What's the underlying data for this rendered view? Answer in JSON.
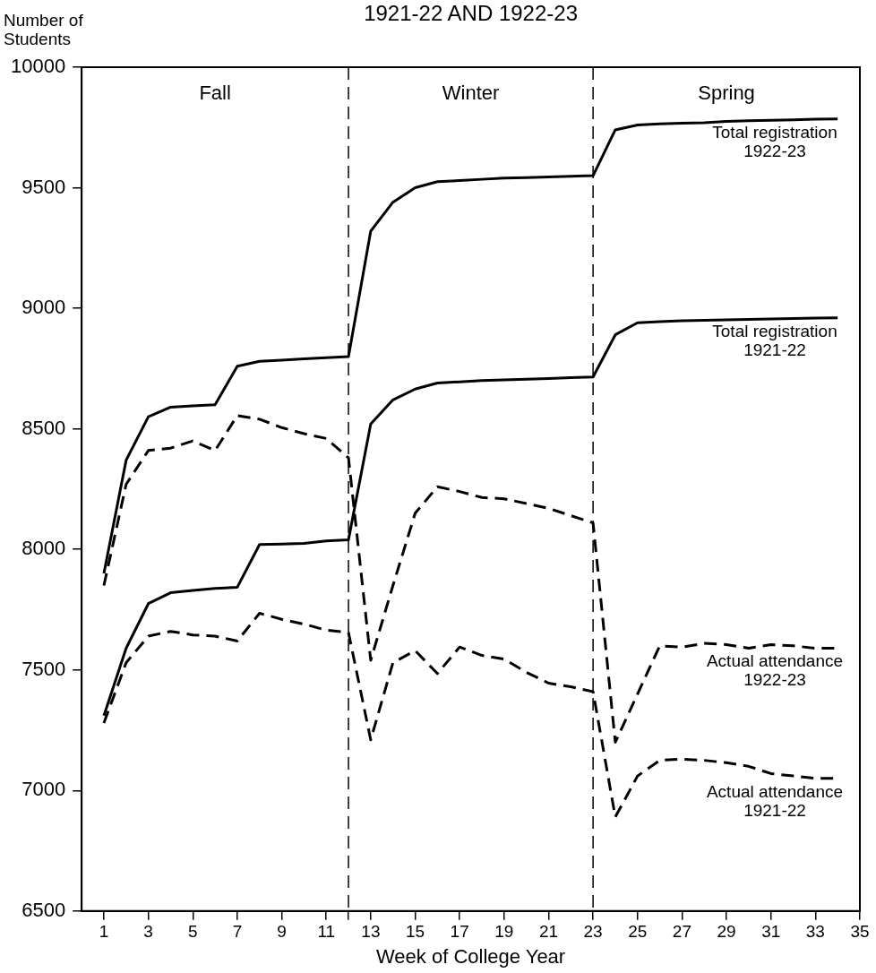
{
  "chart_data": {
    "type": "line",
    "title": "1921-22 AND 1922-23",
    "xlabel": "Week of College Year",
    "ylabel": "Number of\nStudents",
    "x": [
      1,
      2,
      3,
      4,
      5,
      6,
      7,
      8,
      9,
      10,
      11,
      12,
      13,
      14,
      15,
      16,
      17,
      18,
      19,
      20,
      21,
      22,
      23,
      24,
      25,
      26,
      27,
      28,
      29,
      30,
      31,
      32,
      33,
      34
    ],
    "series": [
      {
        "name": "Total registration\n1922-23",
        "color": "#000000",
        "line_style": "solid",
        "values": [
          7900,
          8370,
          8550,
          8590,
          8595,
          8600,
          8760,
          8780,
          8785,
          8790,
          8795,
          8800,
          9320,
          9440,
          9500,
          9525,
          9530,
          9535,
          9540,
          9542,
          9545,
          9548,
          9550,
          9740,
          9760,
          9765,
          9768,
          9770,
          9775,
          9778,
          9780,
          9782,
          9784,
          9785
        ]
      },
      {
        "name": "Total registration\n1921-22",
        "color": "#000000",
        "line_style": "solid",
        "values": [
          7310,
          7590,
          7775,
          7820,
          7830,
          7838,
          7843,
          8020,
          8022,
          8025,
          8035,
          8040,
          8520,
          8620,
          8665,
          8690,
          8695,
          8700,
          8703,
          8706,
          8709,
          8712,
          8715,
          8890,
          8940,
          8945,
          8948,
          8950,
          8952,
          8954,
          8956,
          8958,
          8959,
          8960
        ]
      },
      {
        "name": "Actual attendance\n1922-23",
        "color": "#000000",
        "line_style": "dashed",
        "values": [
          7850,
          8270,
          8410,
          8420,
          8450,
          8410,
          8555,
          8540,
          8505,
          8480,
          8460,
          8380,
          7540,
          7850,
          8150,
          8260,
          8240,
          8215,
          8210,
          8190,
          8170,
          8140,
          8110,
          7200,
          7400,
          7600,
          7595,
          7610,
          7605,
          7590,
          7605,
          7600,
          7590,
          7590
        ]
      },
      {
        "name": "Actual attendance\n1921-22",
        "color": "#000000",
        "line_style": "dashed",
        "values": [
          7280,
          7530,
          7640,
          7660,
          7645,
          7640,
          7620,
          7735,
          7710,
          7690,
          7665,
          7655,
          7210,
          7530,
          7580,
          7485,
          7595,
          7560,
          7545,
          7490,
          7445,
          7430,
          7410,
          6890,
          7060,
          7125,
          7130,
          7125,
          7115,
          7100,
          7070,
          7060,
          7050,
          7050
        ]
      }
    ],
    "xlim": [
      0,
      35
    ],
    "xticks": [
      1,
      3,
      5,
      7,
      9,
      11,
      {
        "value": 12,
        "label": null
      },
      13,
      15,
      17,
      19,
      21,
      23,
      25,
      27,
      29,
      31,
      33,
      35
    ],
    "ylim": [
      6500,
      10000
    ],
    "yticks": [
      6500,
      7000,
      7500,
      8000,
      8500,
      9000,
      9500,
      10000
    ],
    "ref_lines": [
      {
        "axis": "x",
        "value": 12,
        "line_style": "dashed",
        "color": "#000000"
      },
      {
        "axis": "x",
        "value": 23,
        "line_style": "dashed",
        "color": "#000000"
      }
    ],
    "annotations": [
      "Fall",
      "Winter",
      "Spring"
    ],
    "grid": false,
    "legend": false,
    "marker": "none"
  }
}
